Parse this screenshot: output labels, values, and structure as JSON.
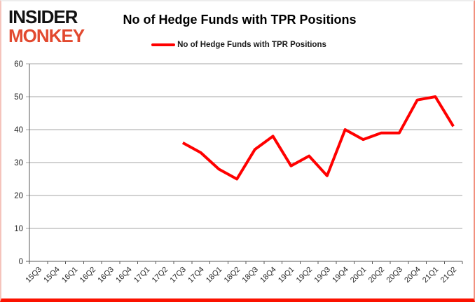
{
  "logo": {
    "line1": "INSIDER",
    "line2": "MONKEY",
    "line1_color": "#121212",
    "line2_color": "#e2492f"
  },
  "title": "No of Hedge Funds with TPR Positions",
  "legend": {
    "label": "No of Hedge Funds with TPR Positions",
    "color": "#ff0000"
  },
  "chart_data": {
    "type": "line",
    "title": "No of Hedge Funds with TPR Positions",
    "categories": [
      "15Q3",
      "15Q4",
      "16Q1",
      "16Q2",
      "16Q3",
      "16Q4",
      "17Q1",
      "17Q2",
      "17Q3",
      "17Q4",
      "18Q1",
      "18Q2",
      "18Q3",
      "18Q4",
      "19Q1",
      "19Q2",
      "19Q3",
      "19Q4",
      "20Q1",
      "20Q2",
      "20Q3",
      "20Q4",
      "21Q1",
      "21Q2"
    ],
    "series": [
      {
        "name": "No of Hedge Funds with TPR Positions",
        "color": "#ff0000",
        "values": [
          null,
          null,
          null,
          null,
          null,
          null,
          null,
          null,
          36,
          33,
          28,
          25,
          34,
          38,
          29,
          32,
          26,
          40,
          37,
          39,
          39,
          49,
          50,
          41
        ]
      }
    ],
    "ylim": [
      0,
      60
    ],
    "yticks": [
      0,
      10,
      20,
      30,
      40,
      50,
      60
    ],
    "grid": true,
    "legend_position": "top-center",
    "xlabel": "",
    "ylabel": ""
  },
  "colors": {
    "line_red": "#ff0000",
    "logo_red": "#e2492f",
    "gridline": "#a6a6a6",
    "axis": "#595959",
    "tick_text": "#262626",
    "bottom_border_red": "#fb1200"
  }
}
